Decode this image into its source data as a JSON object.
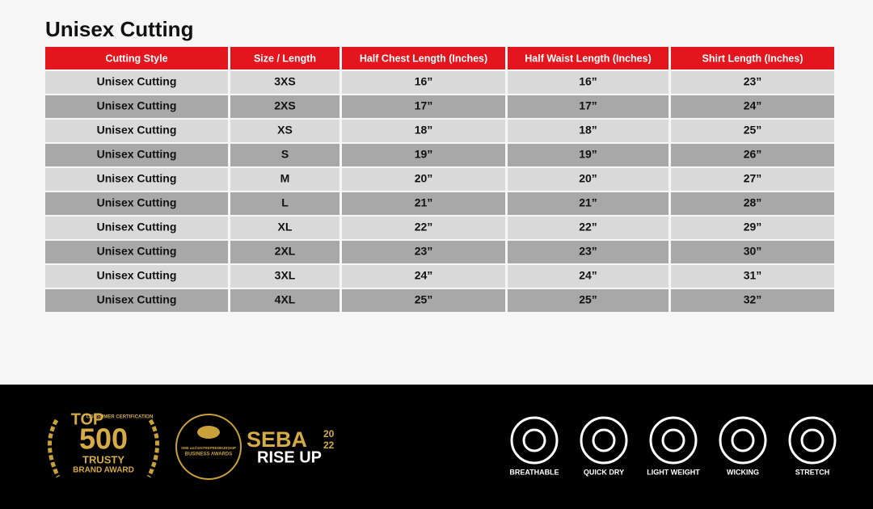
{
  "header": {
    "title": "Unisex Cutting"
  },
  "table": {
    "columns": [
      "Cutting Style",
      "Size / Length",
      "Half Chest Length (Inches)",
      "Half Waist Length (Inches)",
      "Shirt Length (Inches)"
    ],
    "rows": [
      [
        "Unisex Cutting",
        "3XS",
        "16”",
        "16”",
        "23”"
      ],
      [
        "Unisex Cutting",
        "2XS",
        "17”",
        "17”",
        "24”"
      ],
      [
        "Unisex Cutting",
        "XS",
        "18”",
        "18”",
        "25”"
      ],
      [
        "Unisex Cutting",
        "S",
        "19”",
        "19”",
        "26”"
      ],
      [
        "Unisex Cutting",
        "M",
        "20”",
        "20”",
        "27”"
      ],
      [
        "Unisex Cutting",
        "L",
        "21”",
        "21”",
        "28”"
      ],
      [
        "Unisex Cutting",
        "XL",
        "22”",
        "22”",
        "29”"
      ],
      [
        "Unisex Cutting",
        "2XL",
        "23”",
        "23”",
        "30”"
      ],
      [
        "Unisex Cutting",
        "3XL",
        "24”",
        "24”",
        "31”"
      ],
      [
        "Unisex Cutting",
        "4XL",
        "25”",
        "25”",
        "32”"
      ]
    ]
  },
  "footer": {
    "award1": {
      "top": "TOP",
      "cert": "CONSUMER CERTIFICATION",
      "number": "500",
      "trusty": "TRUSTY",
      "award": "BRAND AWARD"
    },
    "award2": {
      "line1": "SME and ENTREPRENEURSHIP",
      "line2": "BUSINESS AWARDS"
    },
    "award3": {
      "name": "SEBA",
      "year1": "20",
      "year2": "22",
      "slogan": "RISE UP"
    },
    "features": [
      "BREATHABLE",
      "QUICK DRY",
      "LIGHT WEIGHT",
      "WICKING",
      "STRETCH"
    ]
  }
}
